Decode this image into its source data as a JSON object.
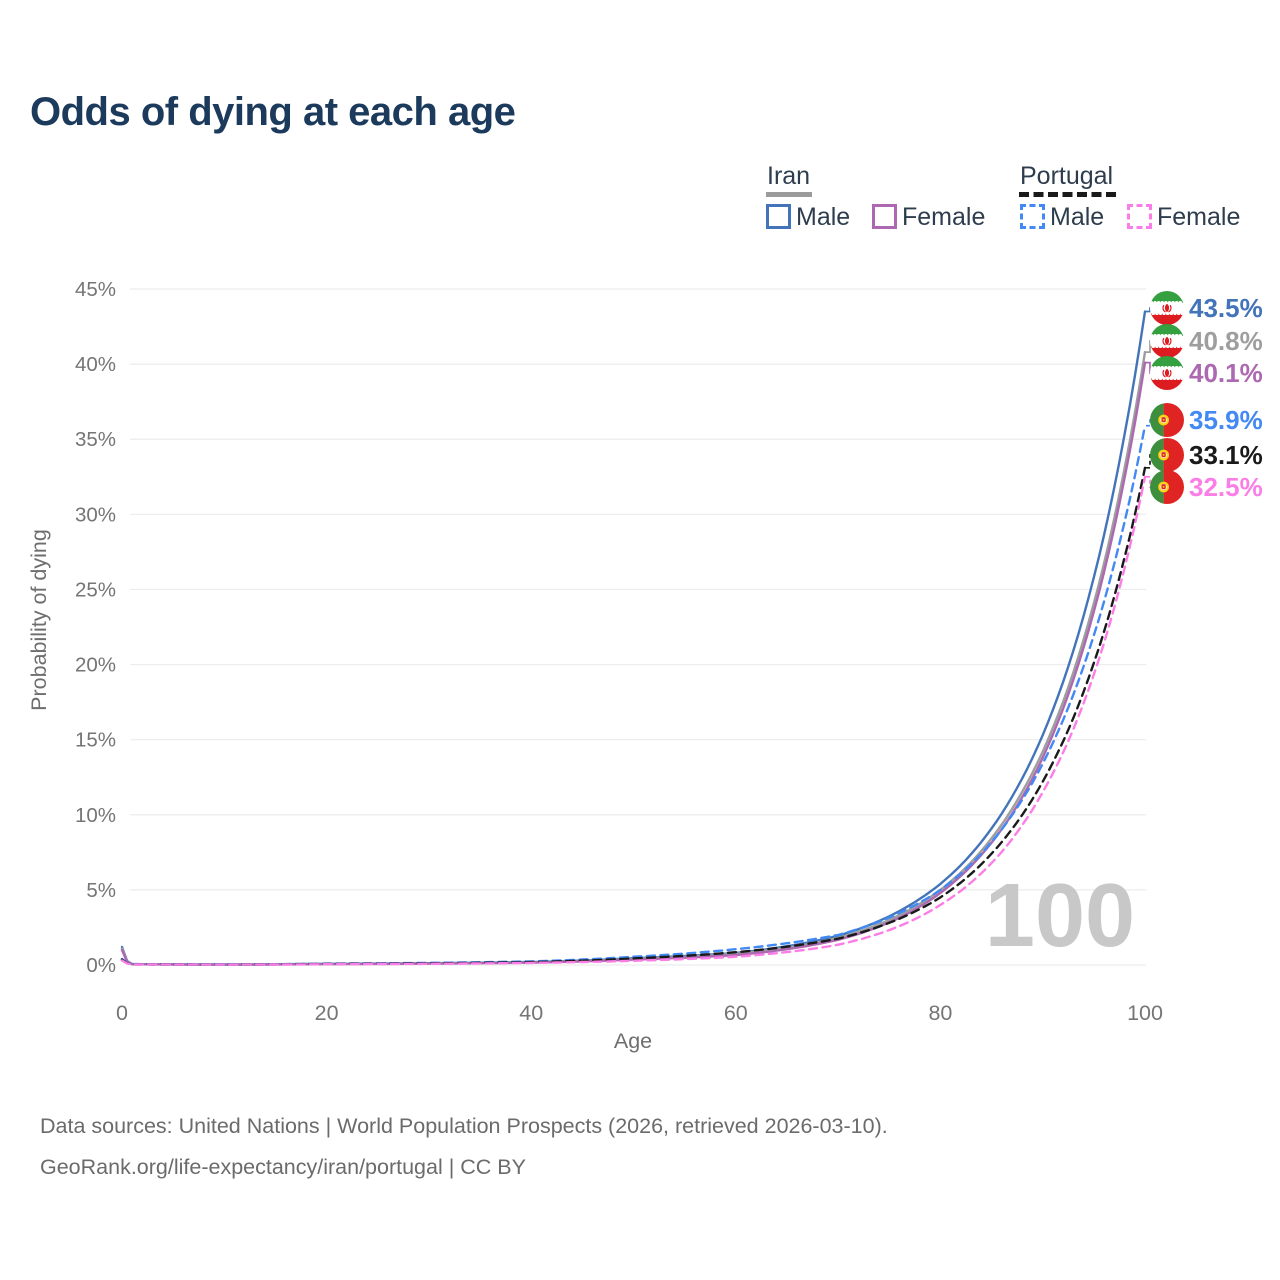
{
  "title": "Odds of dying at each age",
  "watermark": "100",
  "legend": {
    "groups": [
      {
        "name": "Iran",
        "line_style": "solid",
        "swatch_color": "#9b9b9b",
        "items": [
          {
            "label": "Male",
            "color": "#4374ba"
          },
          {
            "label": "Female",
            "color": "#ac68b0"
          }
        ]
      },
      {
        "name": "Portugal",
        "line_style": "dashed",
        "swatch_color": "#1a1a1a",
        "items": [
          {
            "label": "Male",
            "color": "#4289f4"
          },
          {
            "label": "Female",
            "color": "#fb7ee6"
          }
        ]
      }
    ]
  },
  "axes": {
    "x": {
      "label": "Age",
      "ticks": [
        0,
        20,
        40,
        60,
        80,
        100
      ],
      "range": [
        0,
        100
      ]
    },
    "y": {
      "label": "Probability of dying",
      "ticks": [
        "0%",
        "5%",
        "10%",
        "15%",
        "20%",
        "25%",
        "30%",
        "35%",
        "40%",
        "45%"
      ],
      "tick_values": [
        0,
        5,
        10,
        15,
        20,
        25,
        30,
        35,
        40,
        45
      ],
      "range": [
        0,
        45
      ],
      "grid": true
    }
  },
  "chart_data": {
    "type": "line",
    "unit": "percent probability of dying at each age",
    "x_ages": [
      0,
      1,
      10,
      20,
      30,
      40,
      50,
      60,
      70,
      80,
      90,
      100
    ],
    "series": [
      {
        "name": "Iran — Male",
        "country": "Iran",
        "flag": "iran-flag",
        "style": "solid",
        "color": "#4374ba",
        "end_label": "43.5%",
        "end_value": 43.5,
        "values": [
          1.2,
          0.06,
          0.03,
          0.08,
          0.12,
          0.2,
          0.45,
          0.8,
          1.95,
          5.4,
          15.3,
          43.5
        ]
      },
      {
        "name": "Iran — Total",
        "country": "Iran",
        "flag": "iran-flag",
        "style": "solid",
        "color": "#9e9e9e",
        "end_label": "40.8%",
        "end_value": 40.8,
        "values": [
          1.1,
          0.055,
          0.027,
          0.07,
          0.11,
          0.18,
          0.4,
          0.74,
          1.8,
          5.0,
          14.2,
          40.8
        ]
      },
      {
        "name": "Iran — Female",
        "country": "Iran",
        "flag": "iran-flag",
        "style": "solid",
        "color": "#ac68b0",
        "end_label": "40.1%",
        "end_value": 40.1,
        "values": [
          1.0,
          0.05,
          0.024,
          0.06,
          0.09,
          0.16,
          0.36,
          0.66,
          1.68,
          4.8,
          13.8,
          40.1
        ]
      },
      {
        "name": "Portugal — Male",
        "country": "Portugal",
        "flag": "portugal-flag",
        "style": "dashed",
        "color": "#4289f4",
        "end_label": "35.9%",
        "end_value": 35.9,
        "values": [
          0.4,
          0.05,
          0.03,
          0.09,
          0.14,
          0.24,
          0.55,
          1.05,
          2.0,
          5.0,
          13.4,
          35.9
        ]
      },
      {
        "name": "Portugal — Total",
        "country": "Portugal",
        "flag": "portugal-flag",
        "style": "dashed",
        "color": "#1a1a1a",
        "end_label": "33.1%",
        "end_value": 33.1,
        "values": [
          0.35,
          0.04,
          0.025,
          0.07,
          0.11,
          0.19,
          0.44,
          0.85,
          1.75,
          4.5,
          12.2,
          33.1
        ]
      },
      {
        "name": "Portugal — Female",
        "country": "Portugal",
        "flag": "portugal-flag",
        "style": "dashed",
        "color": "#fb7ee6",
        "end_label": "32.5%",
        "end_value": 32.5,
        "values": [
          0.3,
          0.035,
          0.02,
          0.05,
          0.08,
          0.14,
          0.28,
          0.55,
          1.35,
          4.0,
          11.5,
          32.5
        ]
      }
    ]
  },
  "footer": {
    "line1": "Data sources: United Nations | World Population Prospects (2026, retrieved 2026-03-10).",
    "line2": "GeoRank.org/life-expectancy/iran/portugal | CC BY"
  }
}
